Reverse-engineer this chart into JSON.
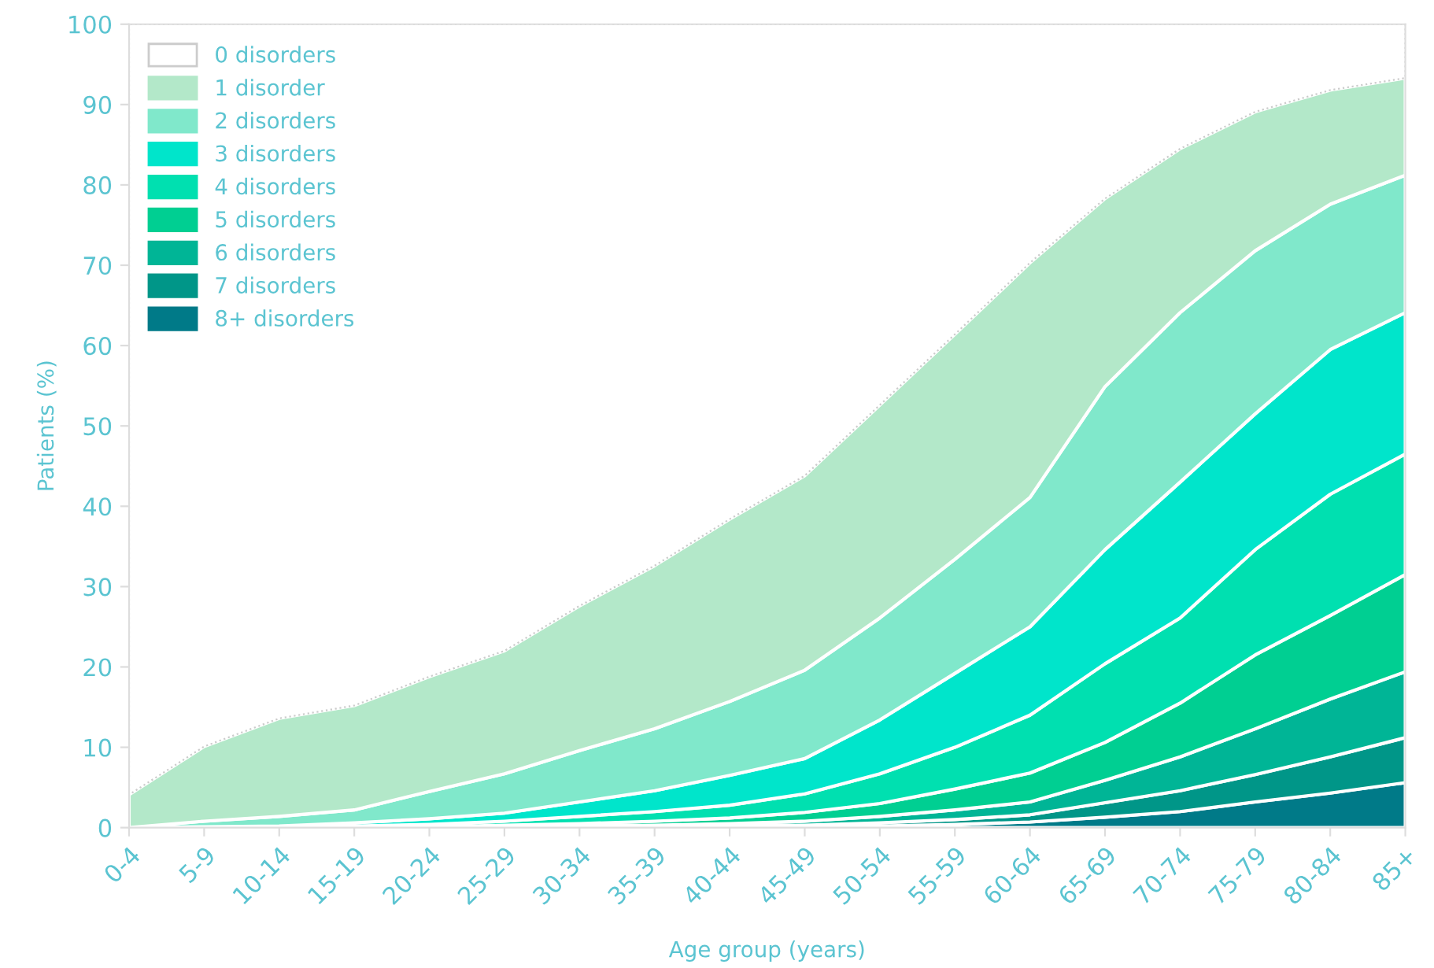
{
  "chart_data": {
    "type": "area",
    "stacked": true,
    "xlabel": "Age group (years)",
    "ylabel": "Patients (%)",
    "categories": [
      "0-4",
      "5-9",
      "10-14",
      "15-19",
      "20-24",
      "25-29",
      "30-34",
      "35-39",
      "40-44",
      "45-49",
      "50-54",
      "55-59",
      "60-64",
      "65-69",
      "70-74",
      "75-79",
      "80-84",
      "85+"
    ],
    "ylim": [
      0,
      100
    ],
    "yticks": [
      0,
      10,
      20,
      30,
      40,
      50,
      60,
      70,
      80,
      90,
      100
    ],
    "grid": false,
    "legend": "top left",
    "series": [
      {
        "name": "8+ disorders",
        "color": "#007a88",
        "values": [
          0,
          0,
          0,
          0,
          0,
          0,
          0,
          0,
          0,
          0.1,
          0.2,
          0.4,
          0.7,
          1.3,
          2.0,
          3.2,
          4.3,
          5.6
        ]
      },
      {
        "name": "7 disorders",
        "color": "#009688",
        "values": [
          0,
          0,
          0,
          0,
          0,
          0,
          0.1,
          0.1,
          0.2,
          0.2,
          0.4,
          0.6,
          0.9,
          1.8,
          2.6,
          3.4,
          4.5,
          5.6
        ]
      },
      {
        "name": "6 disorders",
        "color": "#00b596",
        "values": [
          0,
          0,
          0,
          0,
          0,
          0.1,
          0.1,
          0.2,
          0.3,
          0.5,
          0.8,
          1.2,
          1.6,
          2.8,
          4.2,
          5.7,
          7.2,
          8.2
        ]
      },
      {
        "name": "5 disorders",
        "color": "#00cf92",
        "values": [
          0,
          0,
          0,
          0,
          0.1,
          0.2,
          0.3,
          0.5,
          0.7,
          1.1,
          1.6,
          2.6,
          3.6,
          4.7,
          6.7,
          9.2,
          10.4,
          12.1
        ]
      },
      {
        "name": "4 disorders",
        "color": "#00e0b0",
        "values": [
          0,
          0,
          0,
          0.2,
          0.3,
          0.5,
          0.9,
          1.2,
          1.6,
          2.3,
          3.7,
          5.2,
          7.2,
          9.8,
          10.6,
          13.1,
          15.1,
          15.0
        ]
      },
      {
        "name": "3 disorders",
        "color": "#00e5cb",
        "values": [
          0,
          0.1,
          0.2,
          0.4,
          0.7,
          1.0,
          1.8,
          2.6,
          3.7,
          4.4,
          6.7,
          9.2,
          11.0,
          14.2,
          16.9,
          16.9,
          18.0,
          17.6
        ]
      },
      {
        "name": "2 disorders",
        "color": "#80e8cb",
        "values": [
          0,
          0.7,
          1.2,
          1.6,
          3.4,
          4.9,
          6.4,
          7.7,
          9.2,
          11.0,
          12.7,
          14.2,
          16.1,
          20.3,
          21.1,
          20.3,
          18.1,
          17.1
        ]
      },
      {
        "name": "1 disorder",
        "color": "#b3e8c9",
        "values": [
          4.1,
          9.3,
          12.2,
          13.0,
          14.3,
          15.3,
          18.0,
          20.3,
          22.7,
          24.2,
          26.5,
          28.0,
          29.2,
          23.4,
          20.4,
          17.3,
          14.2,
          12.1
        ]
      },
      {
        "name": "0 disorders",
        "color": "#ffffff",
        "values": [
          95.9,
          89.9,
          86.4,
          84.8,
          81.2,
          78.0,
          72.4,
          67.4,
          61.6,
          56.2,
          47.4,
          38.6,
          29.7,
          21.7,
          15.5,
          10.9,
          8.2,
          6.7
        ]
      }
    ]
  }
}
